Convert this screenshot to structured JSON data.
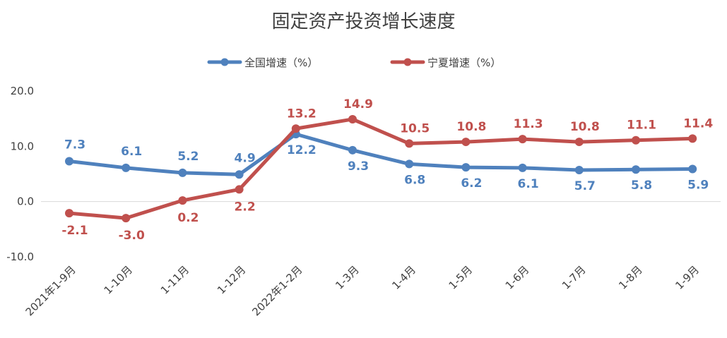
{
  "chart_data": {
    "type": "line",
    "title": "固定资产投资增长速度",
    "xlabel": "",
    "ylabel": "",
    "ylim": [
      -10,
      20
    ],
    "yticks": [
      "20.0",
      "10.0",
      "0.0",
      "-10.0"
    ],
    "categories": [
      "2021年1-9月",
      "1-10月",
      "1-11月",
      "1-12月",
      "2022年1-2月",
      "1-3月",
      "1-4月",
      "1-5月",
      "1-6月",
      "1-7月",
      "1-8月",
      "1-9月"
    ],
    "series": [
      {
        "name": "全国增速（%）",
        "color": "#4f81bd",
        "label_color": "#4f81bd",
        "values": [
          7.3,
          6.1,
          5.2,
          4.9,
          12.2,
          9.3,
          6.8,
          6.2,
          6.1,
          5.7,
          5.8,
          5.9
        ]
      },
      {
        "name": "宁夏增速（%）",
        "color": "#c0504d",
        "label_color": "#c0504d",
        "values": [
          -2.1,
          -3.0,
          0.2,
          2.2,
          13.2,
          14.9,
          10.5,
          10.8,
          11.3,
          10.8,
          11.1,
          11.4
        ]
      }
    ],
    "grid": false,
    "legend_position": "top-center"
  }
}
